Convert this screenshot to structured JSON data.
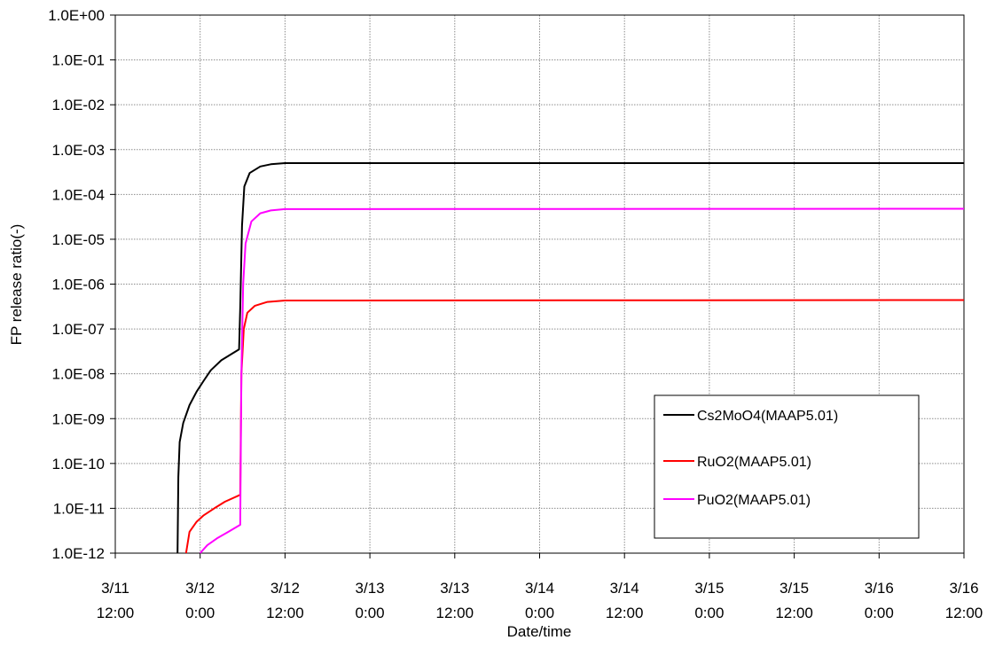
{
  "chart_data": {
    "type": "line",
    "title": "",
    "xlabel": "Date/time",
    "ylabel": "FP release ratio(-)",
    "yscale": "log",
    "ylim": [
      1e-12,
      1
    ],
    "xlim": [
      "2011-03-11 12:00",
      "2011-03-16 12:00"
    ],
    "grid": true,
    "legend_position": "lower-right",
    "y_ticks": [
      {
        "value": 1,
        "label": "1.0E+00"
      },
      {
        "value": 0.1,
        "label": "1.0E-01"
      },
      {
        "value": 0.01,
        "label": "1.0E-02"
      },
      {
        "value": 0.001,
        "label": "1.0E-03"
      },
      {
        "value": 0.0001,
        "label": "1.0E-04"
      },
      {
        "value": 1e-05,
        "label": "1.0E-05"
      },
      {
        "value": 1e-06,
        "label": "1.0E-06"
      },
      {
        "value": 1e-07,
        "label": "1.0E-07"
      },
      {
        "value": 1e-08,
        "label": "1.0E-08"
      },
      {
        "value": 1e-09,
        "label": "1.0E-09"
      },
      {
        "value": 1e-10,
        "label": "1.0E-10"
      },
      {
        "value": 1e-11,
        "label": "1.0E-11"
      },
      {
        "value": 1e-12,
        "label": "1.0E-12"
      }
    ],
    "x_ticks": [
      {
        "value": "2011-03-11 12:00",
        "label_date": "3/11",
        "label_time": "12:00"
      },
      {
        "value": "2011-03-12 00:00",
        "label_date": "3/12",
        "label_time": "0:00"
      },
      {
        "value": "2011-03-12 12:00",
        "label_date": "3/12",
        "label_time": "12:00"
      },
      {
        "value": "2011-03-13 00:00",
        "label_date": "3/13",
        "label_time": "0:00"
      },
      {
        "value": "2011-03-13 12:00",
        "label_date": "3/13",
        "label_time": "12:00"
      },
      {
        "value": "2011-03-14 00:00",
        "label_date": "3/14",
        "label_time": "0:00"
      },
      {
        "value": "2011-03-14 12:00",
        "label_date": "3/14",
        "label_time": "12:00"
      },
      {
        "value": "2011-03-15 00:00",
        "label_date": "3/15",
        "label_time": "0:00"
      },
      {
        "value": "2011-03-15 12:00",
        "label_date": "3/15",
        "label_time": "12:00"
      },
      {
        "value": "2011-03-16 00:00",
        "label_date": "3/16",
        "label_time": "0:00"
      },
      {
        "value": "2011-03-16 12:00",
        "label_date": "3/16",
        "label_time": "12:00"
      }
    ],
    "series": [
      {
        "name": "Cs2MoO4(MAAP5.01)",
        "color": "#000000",
        "points": [
          [
            "2011-03-11 20:48",
            1e-12
          ],
          [
            "2011-03-11 20:55",
            5e-11
          ],
          [
            "2011-03-11 21:06",
            3e-10
          ],
          [
            "2011-03-11 21:36",
            8e-10
          ],
          [
            "2011-03-11 22:30",
            2e-09
          ],
          [
            "2011-03-11 23:30",
            4e-09
          ],
          [
            "2011-03-12 00:30",
            7e-09
          ],
          [
            "2011-03-12 01:30",
            1.2e-08
          ],
          [
            "2011-03-12 03:00",
            2e-08
          ],
          [
            "2011-03-12 04:30",
            2.8e-08
          ],
          [
            "2011-03-12 05:30",
            3.5e-08
          ],
          [
            "2011-03-12 05:40",
            3e-07
          ],
          [
            "2011-03-12 05:55",
            2e-05
          ],
          [
            "2011-03-12 06:15",
            0.00015
          ],
          [
            "2011-03-12 07:00",
            0.0003
          ],
          [
            "2011-03-12 08:30",
            0.00042
          ],
          [
            "2011-03-12 10:00",
            0.00047
          ],
          [
            "2011-03-12 12:00",
            0.0005
          ],
          [
            "2011-03-16 12:00",
            0.0005
          ]
        ]
      },
      {
        "name": "RuO2(MAAP5.01)",
        "color": "#ff0000",
        "points": [
          [
            "2011-03-11 22:00",
            1e-12
          ],
          [
            "2011-03-11 22:30",
            3e-12
          ],
          [
            "2011-03-11 23:30",
            5e-12
          ],
          [
            "2011-03-12 00:30",
            7e-12
          ],
          [
            "2011-03-12 02:00",
            1e-11
          ],
          [
            "2011-03-12 03:30",
            1.4e-11
          ],
          [
            "2011-03-12 05:40",
            2e-11
          ],
          [
            "2011-03-12 05:50",
            1e-08
          ],
          [
            "2011-03-12 06:10",
            1e-07
          ],
          [
            "2011-03-12 06:40",
            2.3e-07
          ],
          [
            "2011-03-12 07:45",
            3.3e-07
          ],
          [
            "2011-03-12 09:30",
            4e-07
          ],
          [
            "2011-03-12 12:00",
            4.3e-07
          ],
          [
            "2011-03-16 12:00",
            4.4e-07
          ]
        ]
      },
      {
        "name": "PuO2(MAAP5.01)",
        "color": "#ff00ff",
        "points": [
          [
            "2011-03-12 00:00",
            1e-12
          ],
          [
            "2011-03-12 01:00",
            1.5e-12
          ],
          [
            "2011-03-12 02:30",
            2.2e-12
          ],
          [
            "2011-03-12 04:00",
            3e-12
          ],
          [
            "2011-03-12 05:40",
            4.3e-12
          ],
          [
            "2011-03-12 05:50",
            1e-08
          ],
          [
            "2011-03-12 06:05",
            1e-06
          ],
          [
            "2011-03-12 06:25",
            8e-06
          ],
          [
            "2011-03-12 07:15",
            2.5e-05
          ],
          [
            "2011-03-12 08:30",
            3.8e-05
          ],
          [
            "2011-03-12 10:00",
            4.4e-05
          ],
          [
            "2011-03-12 12:00",
            4.7e-05
          ],
          [
            "2011-03-16 12:00",
            4.8e-05
          ]
        ]
      }
    ]
  }
}
